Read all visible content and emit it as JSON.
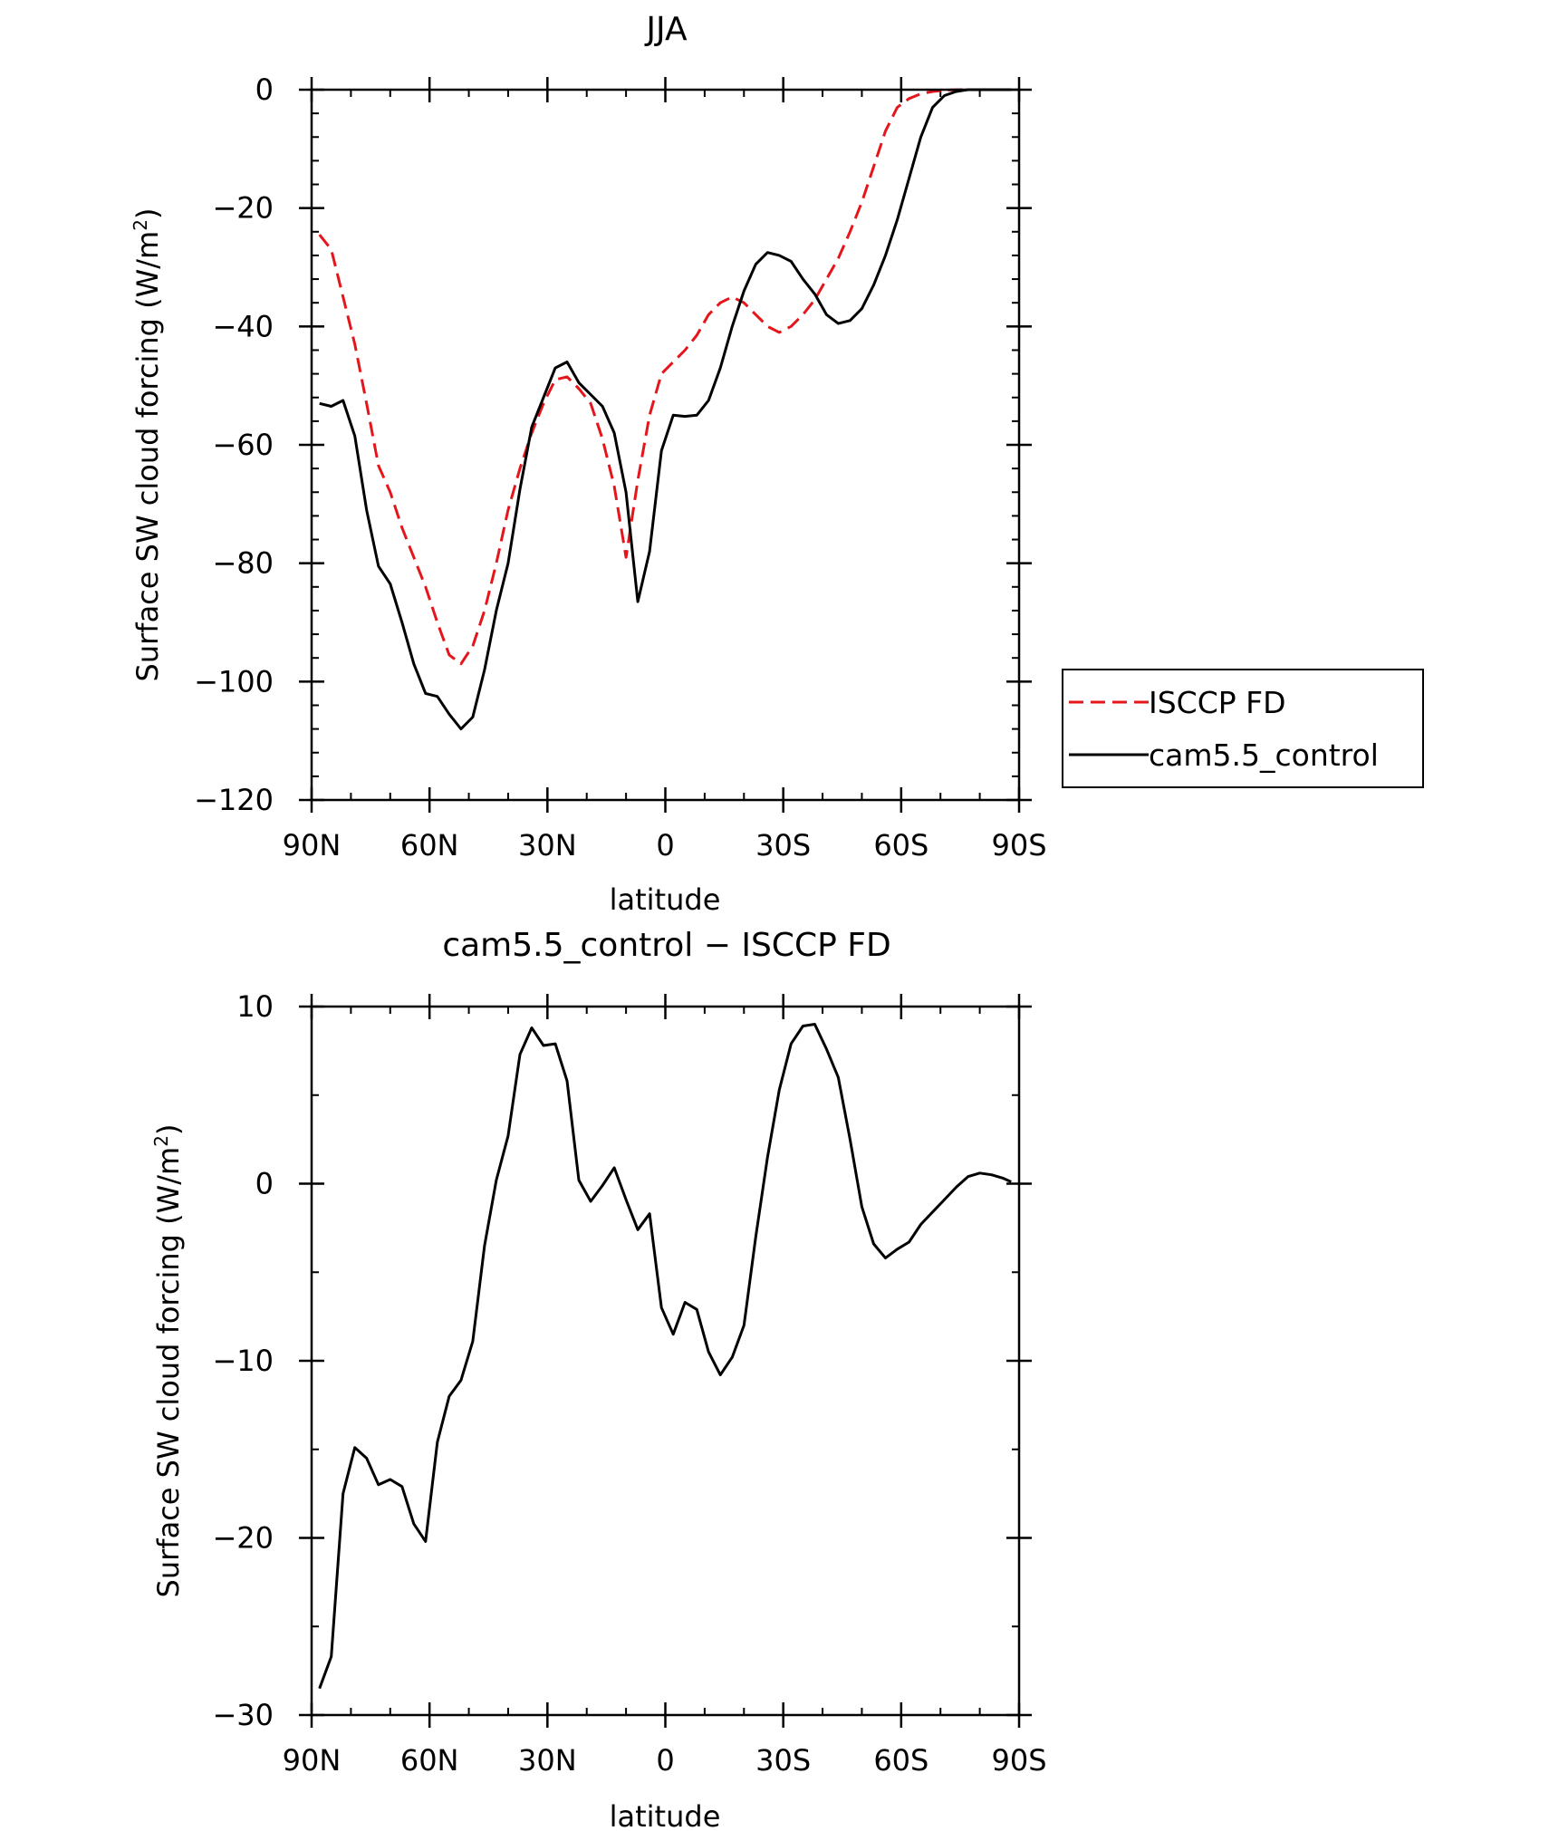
{
  "chart_data": [
    {
      "type": "line",
      "title": "JJA",
      "xlabel": "latitude",
      "ylabel": "Surface SW cloud forcing (W/m",
      "ylabel_sup": "2",
      "ylabel_close": ")",
      "xlim": [
        90,
        -90
      ],
      "ylim": [
        -120,
        0
      ],
      "xticks": [
        {
          "value": 90,
          "label": "90N"
        },
        {
          "value": 60,
          "label": "60N"
        },
        {
          "value": 30,
          "label": "30N"
        },
        {
          "value": 0,
          "label": "0"
        },
        {
          "value": -30,
          "label": "30S"
        },
        {
          "value": -60,
          "label": "60S"
        },
        {
          "value": -90,
          "label": "90S"
        }
      ],
      "yticks": [
        {
          "value": 0,
          "label": "0"
        },
        {
          "value": -20,
          "label": "−20"
        },
        {
          "value": -40,
          "label": "−40"
        },
        {
          "value": -60,
          "label": "−60"
        },
        {
          "value": -80,
          "label": "−80"
        },
        {
          "value": -100,
          "label": "−100"
        },
        {
          "value": -120,
          "label": "−120"
        }
      ],
      "legend": {
        "position": "right",
        "entries": [
          {
            "label": "ISCCP FD",
            "color": "#e4161b",
            "dash": "dashed"
          },
          {
            "label": "cam5.5_control",
            "color": "#000000",
            "dash": "solid"
          }
        ]
      },
      "series": [
        {
          "name": "ISCCP FD",
          "color": "#e4161b",
          "dash": "dashed",
          "x": [
            88,
            85,
            82,
            79,
            76,
            73,
            70,
            67,
            64,
            61,
            58,
            55,
            52,
            49,
            46,
            43,
            40,
            37,
            34,
            31,
            28,
            25,
            22,
            19,
            16,
            13,
            10,
            7,
            4,
            1,
            -2,
            -5,
            -8,
            -11,
            -14,
            -17,
            -20,
            -23,
            -26,
            -29,
            -32,
            -35,
            -38,
            -41,
            -44,
            -47,
            -50,
            -53,
            -56,
            -59,
            -62,
            -65,
            -68,
            -71,
            -74,
            -77,
            -80,
            -83,
            -86,
            -88
          ],
          "y": [
            -24.5,
            -27,
            -35,
            -43,
            -53,
            -63.5,
            -68,
            -74,
            -79,
            -84,
            -90,
            -95.5,
            -97,
            -94,
            -88,
            -80,
            -71,
            -64,
            -58,
            -53,
            -49,
            -48.5,
            -50.5,
            -53,
            -59,
            -67,
            -79,
            -66,
            -55,
            -48,
            -46,
            -44,
            -41.5,
            -38,
            -36,
            -35,
            -36,
            -38,
            -40,
            -41,
            -40,
            -38,
            -35.5,
            -32,
            -28.5,
            -24,
            -19,
            -13,
            -7,
            -3,
            -1.5,
            -0.7,
            -0.3,
            -0.1,
            0,
            0,
            0,
            0,
            0,
            0
          ]
        },
        {
          "name": "cam5.5_control",
          "color": "#000000",
          "dash": "solid",
          "x": [
            88,
            85,
            82,
            79,
            76,
            73,
            70,
            67,
            64,
            61,
            58,
            55,
            52,
            49,
            46,
            43,
            40,
            37,
            34,
            31,
            28,
            25,
            22,
            19,
            16,
            13,
            10,
            7,
            4,
            1,
            -2,
            -5,
            -8,
            -11,
            -14,
            -17,
            -20,
            -23,
            -26,
            -29,
            -32,
            -35,
            -38,
            -41,
            -44,
            -47,
            -50,
            -53,
            -56,
            -59,
            -62,
            -65,
            -68,
            -71,
            -74,
            -77,
            -80,
            -83,
            -86,
            -88
          ],
          "y": [
            -53,
            -53.5,
            -52.5,
            -58.5,
            -71,
            -80.5,
            -83.5,
            -90,
            -97,
            -102,
            -102.5,
            -105.5,
            -108,
            -106,
            -98,
            -88,
            -80,
            -67.5,
            -57,
            -52,
            -47,
            -46,
            -49.5,
            -51.5,
            -53.5,
            -58,
            -68,
            -86.5,
            -78,
            -61,
            -55,
            -55.2,
            -55,
            -52.5,
            -47,
            -40,
            -34,
            -29.5,
            -27.5,
            -28,
            -29,
            -32,
            -34.5,
            -38,
            -39.5,
            -39,
            -37,
            -33,
            -28,
            -22,
            -15,
            -8,
            -3,
            -1,
            -0.3,
            0,
            0,
            0,
            0,
            0
          ]
        }
      ]
    },
    {
      "type": "line",
      "title": "cam5.5_control − ISCCP FD",
      "xlabel": "latitude",
      "ylabel": "Surface SW cloud forcing (W/m",
      "ylabel_sup": "2",
      "ylabel_close": ")",
      "xlim": [
        90,
        -90
      ],
      "ylim": [
        -30,
        10
      ],
      "xticks": [
        {
          "value": 90,
          "label": "90N"
        },
        {
          "value": 60,
          "label": "60N"
        },
        {
          "value": 30,
          "label": "30N"
        },
        {
          "value": 0,
          "label": "0"
        },
        {
          "value": -30,
          "label": "30S"
        },
        {
          "value": -60,
          "label": "60S"
        },
        {
          "value": -90,
          "label": "90S"
        }
      ],
      "yticks": [
        {
          "value": 10,
          "label": "10"
        },
        {
          "value": 0,
          "label": "0"
        },
        {
          "value": -10,
          "label": "−10"
        },
        {
          "value": -20,
          "label": "−20"
        },
        {
          "value": -30,
          "label": "−30"
        }
      ],
      "series": [
        {
          "name": "cam5.5_control − ISCCP FD",
          "color": "#000000",
          "dash": "solid",
          "x": [
            88,
            85,
            82,
            79,
            76,
            73,
            70,
            67,
            64,
            61,
            58,
            55,
            52,
            49,
            46,
            43,
            40,
            37,
            34,
            31,
            28,
            25,
            22,
            19,
            16,
            13,
            10,
            7,
            4,
            1,
            -2,
            -5,
            -8,
            -11,
            -14,
            -17,
            -20,
            -23,
            -26,
            -29,
            -32,
            -35,
            -38,
            -41,
            -44,
            -47,
            -50,
            -53,
            -56,
            -59,
            -62,
            -65,
            -68,
            -71,
            -74,
            -77,
            -80,
            -83,
            -86,
            -88
          ],
          "y": [
            -28.5,
            -26.7,
            -17.5,
            -14.9,
            -15.5,
            -17,
            -16.7,
            -17.1,
            -19.2,
            -20.2,
            -14.6,
            -12,
            -11.1,
            -8.9,
            -3.5,
            0.2,
            2.7,
            7.3,
            8.8,
            7.8,
            7.9,
            5.8,
            0.2,
            -1,
            -0.1,
            0.9,
            -0.9,
            -2.6,
            -1.7,
            -7,
            -8.5,
            -6.7,
            -7.1,
            -9.5,
            -10.8,
            -9.8,
            -8,
            -3,
            1.5,
            5.3,
            7.9,
            8.9,
            9,
            7.6,
            6,
            2.5,
            -1.3,
            -3.4,
            -4.2,
            -3.7,
            -3.3,
            -2.3,
            -1.6,
            -0.9,
            -0.2,
            0.4,
            0.6,
            0.5,
            0.3,
            0.1
          ]
        }
      ]
    }
  ]
}
